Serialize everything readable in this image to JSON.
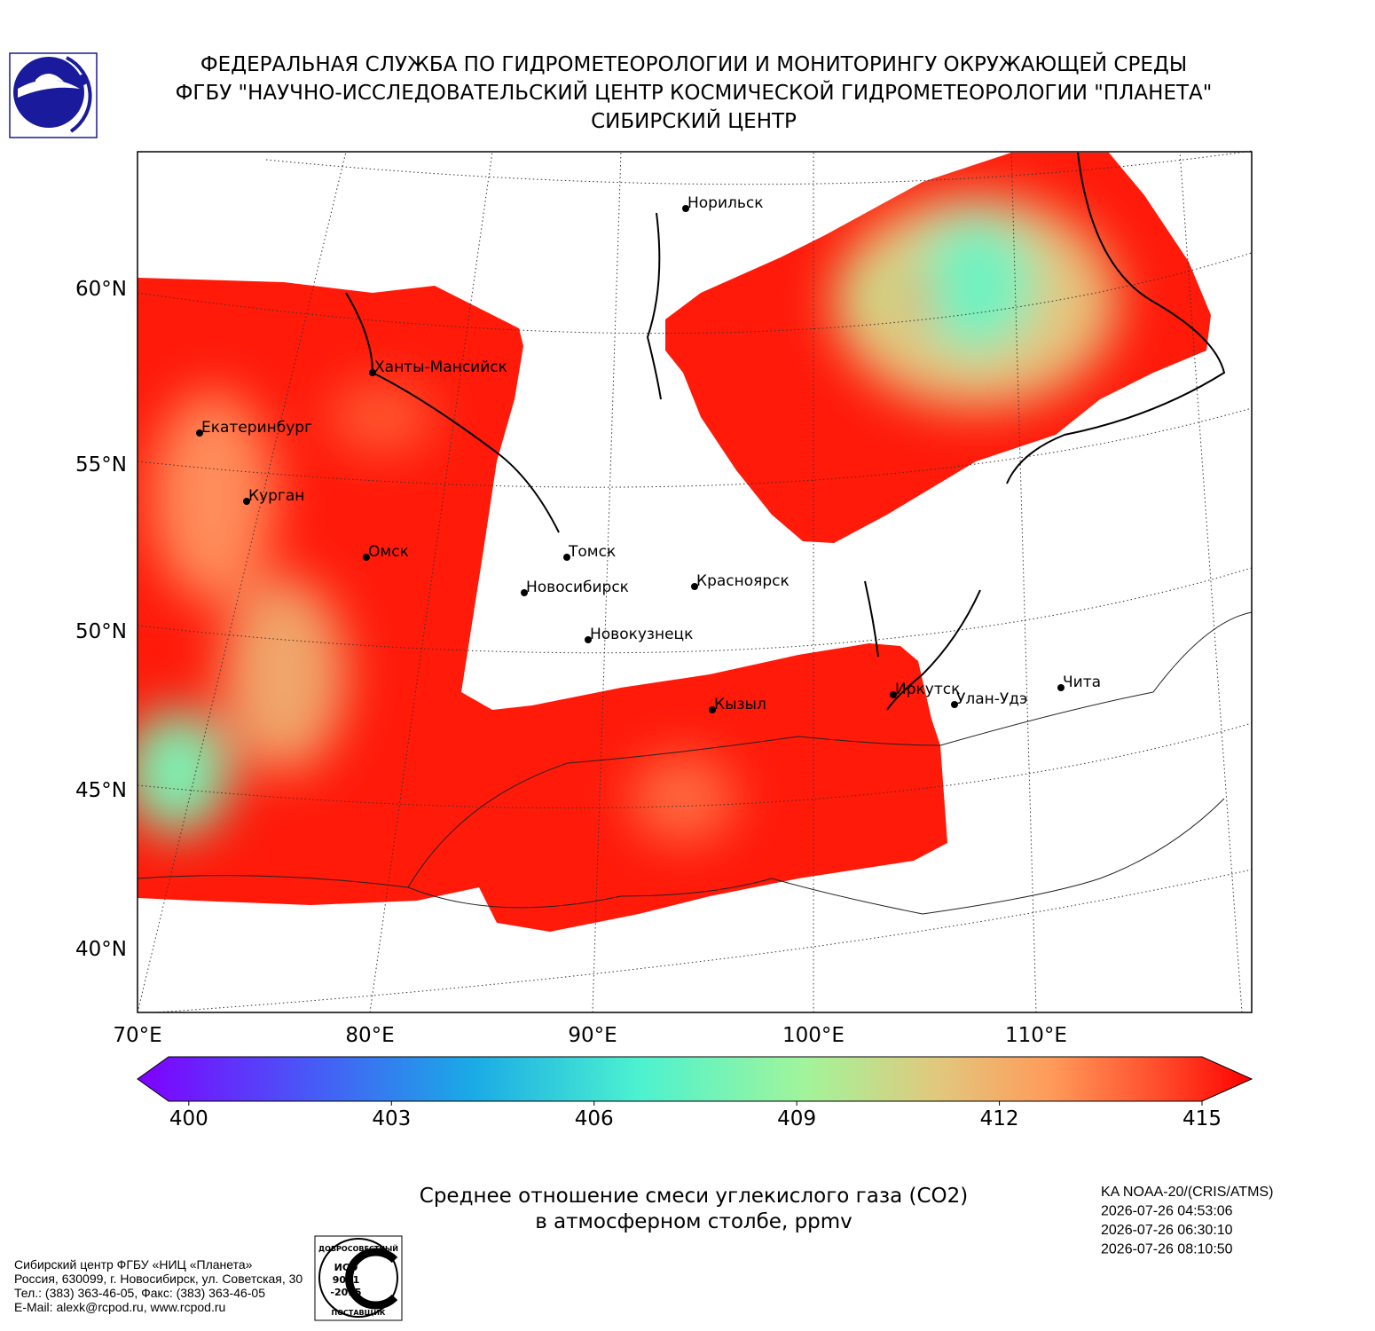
{
  "header": {
    "lines": [
      "ФЕДЕРАЛЬНАЯ СЛУЖБА ПО ГИДРОМЕТЕОРОЛОГИИ И МОНИТОРИНГУ ОКРУЖАЮЩЕЙ СРЕДЫ",
      "ФГБУ \"НАУЧНО-ИССЛЕДОВАТЕЛЬСКИЙ ЦЕНТР КОСМИЧЕСКОЙ ГИДРОМЕТЕОРОЛОГИИ \"ПЛАНЕТА\"",
      "СИБИРСКИЙ ЦЕНТР"
    ]
  },
  "map": {
    "lat_labels": [
      "60°N",
      "55°N",
      "50°N",
      "45°N",
      "40°N"
    ],
    "lon_labels": [
      "70°E",
      "80°E",
      "90°E",
      "100°E",
      "110°E"
    ],
    "cities": [
      "Норильск",
      "Ханты-Мансийск",
      "Екатеринбург",
      "Курган",
      "Омск",
      "Томск",
      "Новосибирск",
      "Красноярск",
      "Новокузнецк",
      "Иркутск",
      "Улан-Удэ",
      "Чита",
      "Кызыл"
    ]
  },
  "colorbar": {
    "lim": [
      399.7,
      415
    ],
    "ticks": [
      400,
      403,
      406,
      409,
      412,
      415
    ]
  },
  "caption": {
    "lines": [
      "Среднее отношение смеси углекислого газа (CO2)",
      "в атмосферном столбе, ppmv"
    ]
  },
  "satellite": {
    "lines": [
      "KA NOAA-20/(CRIS/ATMS)",
      "2026-07-26 04:53:06",
      "2026-07-26 06:30:10",
      "2026-07-26 08:10:50"
    ]
  },
  "footer": {
    "lines": [
      "Сибирский центр ФГБУ «НИЦ «Планета»",
      "Россия, 630099, г. Новосибирск, ул. Советская, 30",
      "Тел.: (383) 363-46-05, Факс: (383) 363-46-05",
      "E-Mail: alexk@rcpod.ru, www.rcpod.ru"
    ]
  },
  "stamp": {
    "top": "ДОБРОСОВЕСТНЫЙ",
    "lines": [
      "ИСО",
      "9001",
      "-2015"
    ],
    "bottom": "ПОСТАВЩИК"
  }
}
